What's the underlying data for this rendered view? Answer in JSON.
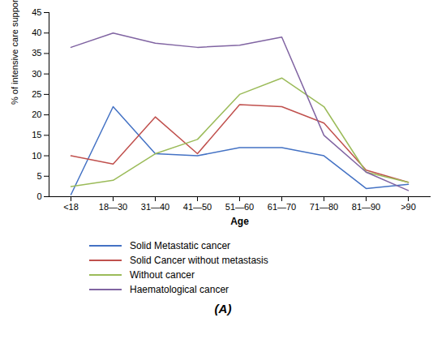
{
  "chart_data": {
    "type": "line",
    "title": "(A)",
    "xlabel": "Age",
    "ylabel": "% of intensive care support",
    "categories": [
      "<18",
      "18—30",
      "31—40",
      "41—50",
      "51—60",
      "61—70",
      "71—80",
      "81—90",
      ">90"
    ],
    "series": [
      {
        "name": "Solid Metastatic cancer",
        "color": "#4472C4",
        "values": [
          0.5,
          22,
          10.5,
          10,
          12,
          12,
          10,
          2,
          3
        ]
      },
      {
        "name": "Solid Cancer without metastasis",
        "color": "#C0504D",
        "values": [
          10,
          8,
          19.5,
          10.5,
          22.5,
          22,
          18,
          6.5,
          3.5
        ]
      },
      {
        "name": "Without cancer",
        "color": "#9BBB59",
        "values": [
          2.5,
          4,
          10.5,
          14,
          25,
          29,
          22,
          6,
          3.5
        ]
      },
      {
        "name": "Haematological cancer",
        "color": "#8064A2",
        "values": [
          36.5,
          40,
          37.5,
          36.5,
          37,
          39,
          15,
          6,
          1.5
        ]
      }
    ],
    "ylim": [
      0,
      45
    ],
    "yticks": [
      0,
      5,
      10,
      15,
      20,
      25,
      30,
      35,
      40,
      45
    ],
    "legend": "bottom"
  }
}
